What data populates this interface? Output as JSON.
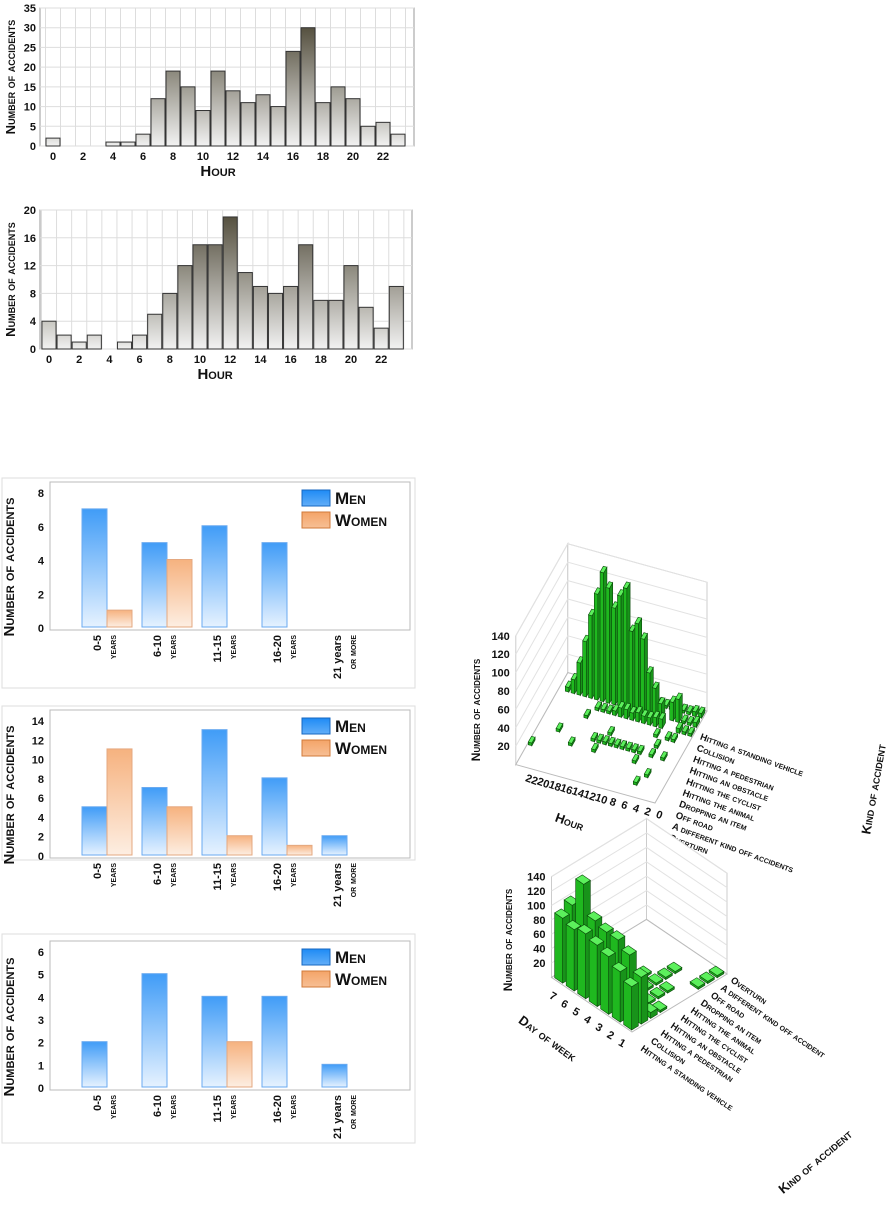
{
  "chart_data": [
    {
      "type": "bar",
      "title": "",
      "xlabel": "Hour",
      "ylabel": "Number of accidents",
      "ylim": [
        0,
        35
      ],
      "yticks": [
        0,
        5,
        10,
        15,
        20,
        25,
        30,
        35
      ],
      "xticks": [
        0,
        2,
        4,
        6,
        8,
        10,
        12,
        14,
        16,
        18,
        20,
        22
      ],
      "categories": [
        0,
        1,
        2,
        3,
        4,
        5,
        6,
        7,
        8,
        9,
        10,
        11,
        12,
        13,
        14,
        15,
        16,
        17,
        18,
        19,
        20,
        21,
        22,
        23
      ],
      "values": [
        2,
        0,
        0,
        0,
        1,
        1,
        3,
        12,
        19,
        15,
        9,
        19,
        14,
        11,
        13,
        10,
        24,
        30,
        11,
        15,
        12,
        5,
        6,
        3
      ],
      "grid": true
    },
    {
      "type": "bar",
      "title": "",
      "xlabel": "Hour",
      "ylabel": "Number of accidents",
      "ylim": [
        0,
        20
      ],
      "yticks": [
        0,
        4,
        8,
        12,
        16,
        20
      ],
      "xticks": [
        0,
        2,
        4,
        6,
        8,
        10,
        12,
        14,
        16,
        18,
        20,
        22
      ],
      "categories": [
        0,
        1,
        2,
        3,
        4,
        5,
        6,
        7,
        8,
        9,
        10,
        11,
        12,
        13,
        14,
        15,
        16,
        17,
        18,
        19,
        20,
        21,
        22,
        23
      ],
      "values": [
        4,
        2,
        1,
        2,
        0,
        1,
        2,
        5,
        8,
        12,
        15,
        15,
        19,
        11,
        9,
        8,
        9,
        15,
        7,
        7,
        12,
        6,
        3,
        9
      ],
      "grid": true
    },
    {
      "type": "bar",
      "ylabel": "Number of accidents",
      "ylim": [
        0,
        8
      ],
      "yticks": [
        0,
        2,
        4,
        6,
        8
      ],
      "categories": [
        [
          "0-5",
          "years"
        ],
        [
          "6-10",
          "years"
        ],
        [
          "11-15",
          "years"
        ],
        [
          "16-20",
          "years"
        ],
        [
          "21 years",
          "or more"
        ]
      ],
      "series": [
        {
          "name": "Men",
          "values": [
            7,
            5,
            6,
            5,
            0
          ],
          "color": "#1e8bf5"
        },
        {
          "name": "Women",
          "values": [
            1,
            4,
            0,
            0,
            0
          ],
          "color": "#f4a468"
        }
      ],
      "legend": "top-right"
    },
    {
      "type": "bar",
      "ylabel": "Number of accidents",
      "ylim": [
        0,
        14
      ],
      "yticks": [
        0,
        2,
        4,
        6,
        8,
        10,
        12,
        14
      ],
      "categories": [
        [
          "0-5",
          "years"
        ],
        [
          "6-10",
          "years"
        ],
        [
          "11-15",
          "years"
        ],
        [
          "16-20",
          "years"
        ],
        [
          "21 years",
          "or more"
        ]
      ],
      "series": [
        {
          "name": "Men",
          "values": [
            5,
            7,
            13,
            8,
            2
          ],
          "color": "#1e8bf5"
        },
        {
          "name": "Women",
          "values": [
            11,
            5,
            2,
            1,
            0
          ],
          "color": "#f4a468"
        }
      ],
      "legend": "top-right"
    },
    {
      "type": "bar",
      "ylabel": "Number of accidents",
      "ylim": [
        0,
        6
      ],
      "yticks": [
        0,
        1,
        2,
        3,
        4,
        5,
        6
      ],
      "categories": [
        [
          "0-5",
          "years"
        ],
        [
          "6-10",
          "years"
        ],
        [
          "11-15",
          "years"
        ],
        [
          "16-20",
          "years"
        ],
        [
          "21 years",
          "or more"
        ]
      ],
      "series": [
        {
          "name": "Men",
          "values": [
            2,
            5,
            4,
            4,
            1
          ],
          "color": "#1e8bf5"
        },
        {
          "name": "Women",
          "values": [
            0,
            0,
            2,
            0,
            0
          ],
          "color": "#f4a468"
        }
      ],
      "legend": "top-right"
    },
    {
      "type": "bar3d",
      "xlabel": "Hour",
      "ylabel": "Number of accidents",
      "zlabel": "Kind of accident",
      "zlim": [
        0,
        140
      ],
      "zticks": [
        20,
        40,
        60,
        80,
        100,
        120,
        140
      ],
      "xticks": [
        0,
        2,
        4,
        6,
        8,
        10,
        12,
        14,
        16,
        18,
        20,
        22
      ],
      "kinds": [
        "Overturn",
        "A different kind off accidents",
        "Off road",
        "Dropping an item",
        "Hitting the animal",
        "Hitting the cyclist",
        "Hitting an obstacle",
        "Hitting a pedestrian",
        "Collision",
        "Hitting a standing vehicle"
      ],
      "matrix": [
        [
          0,
          0,
          0,
          0,
          0,
          0,
          0,
          0,
          0,
          0,
          0,
          0,
          0,
          0,
          0,
          0,
          0,
          0,
          0,
          0,
          0,
          0,
          0,
          0
        ],
        [
          0,
          0,
          0,
          0,
          3,
          0,
          0,
          0,
          0,
          0,
          0,
          0,
          0,
          0,
          0,
          0,
          0,
          0,
          0,
          0,
          0,
          0,
          0,
          0
        ],
        [
          0,
          0,
          0,
          3,
          0,
          0,
          0,
          0,
          0,
          0,
          0,
          0,
          0,
          0,
          0,
          0,
          0,
          0,
          0,
          0,
          0,
          0,
          0,
          3
        ],
        [
          0,
          0,
          0,
          0,
          0,
          0,
          3,
          0,
          0,
          0,
          0,
          0,
          0,
          3,
          0,
          0,
          0,
          3,
          0,
          0,
          0,
          0,
          0,
          0
        ],
        [
          0,
          0,
          3,
          0,
          3,
          0,
          3,
          3,
          3,
          3,
          3,
          3,
          3,
          3,
          3,
          0,
          0,
          0,
          0,
          0,
          3,
          0,
          0,
          0
        ],
        [
          0,
          0,
          0,
          0,
          3,
          0,
          0,
          0,
          0,
          0,
          0,
          0,
          3,
          0,
          0,
          0,
          0,
          0,
          0,
          0,
          0,
          0,
          0,
          0
        ],
        [
          0,
          0,
          3,
          3,
          0,
          3,
          0,
          0,
          0,
          0,
          0,
          0,
          0,
          0,
          0,
          0,
          0,
          3,
          0,
          0,
          0,
          0,
          0,
          0
        ],
        [
          3,
          3,
          5,
          0,
          0,
          10,
          10,
          8,
          8,
          10,
          8,
          10,
          10,
          5,
          3,
          3,
          3,
          0,
          0,
          0,
          0,
          0,
          0,
          0
        ],
        [
          5,
          3,
          3,
          25,
          20,
          0,
          15,
          30,
          45,
          80,
          95,
          85,
          130,
          120,
          105,
          125,
          140,
          115,
          90,
          60,
          35,
          15,
          5,
          0
        ],
        [
          5,
          5,
          3,
          3,
          3,
          3,
          3,
          3,
          3,
          3,
          3,
          3,
          3,
          3,
          3,
          3,
          3,
          3,
          3,
          3,
          3,
          0,
          0,
          0
        ]
      ]
    },
    {
      "type": "bar3d",
      "xlabel": "Day of week",
      "ylabel": "Number of accidents",
      "zlabel": "Kind of accident",
      "zlim": [
        0,
        140
      ],
      "zticks": [
        20,
        40,
        60,
        80,
        100,
        120,
        140
      ],
      "xticks": [
        1,
        2,
        3,
        4,
        5,
        6,
        7
      ],
      "kinds": [
        "Hitting a standing vehicle",
        "Collision",
        "Hitting a pedestrian",
        "Hitting an obstacle",
        "Hitting the cyclist",
        "Hitting the animal",
        "Dropping an item",
        "Off road",
        "A different kind off accident",
        "Overturn"
      ],
      "matrix": [
        [
          60,
          70,
          80,
          85,
          90,
          85,
          90
        ],
        [
          65,
          85,
          95,
          95,
          100,
          140,
          100
        ],
        [
          8,
          10,
          0,
          0,
          0,
          0,
          0
        ],
        [
          3,
          3,
          3,
          3,
          3,
          0,
          0
        ],
        [
          0,
          3,
          3,
          3,
          3,
          0,
          0
        ],
        [
          0,
          3,
          3,
          3,
          0,
          0,
          0
        ],
        [
          0,
          0,
          3,
          0,
          0,
          0,
          0
        ],
        [
          3,
          0,
          3,
          0,
          0,
          0,
          0
        ],
        [
          3,
          0,
          0,
          0,
          0,
          0,
          0
        ],
        [
          3,
          0,
          0,
          0,
          0,
          0,
          0
        ]
      ]
    }
  ]
}
